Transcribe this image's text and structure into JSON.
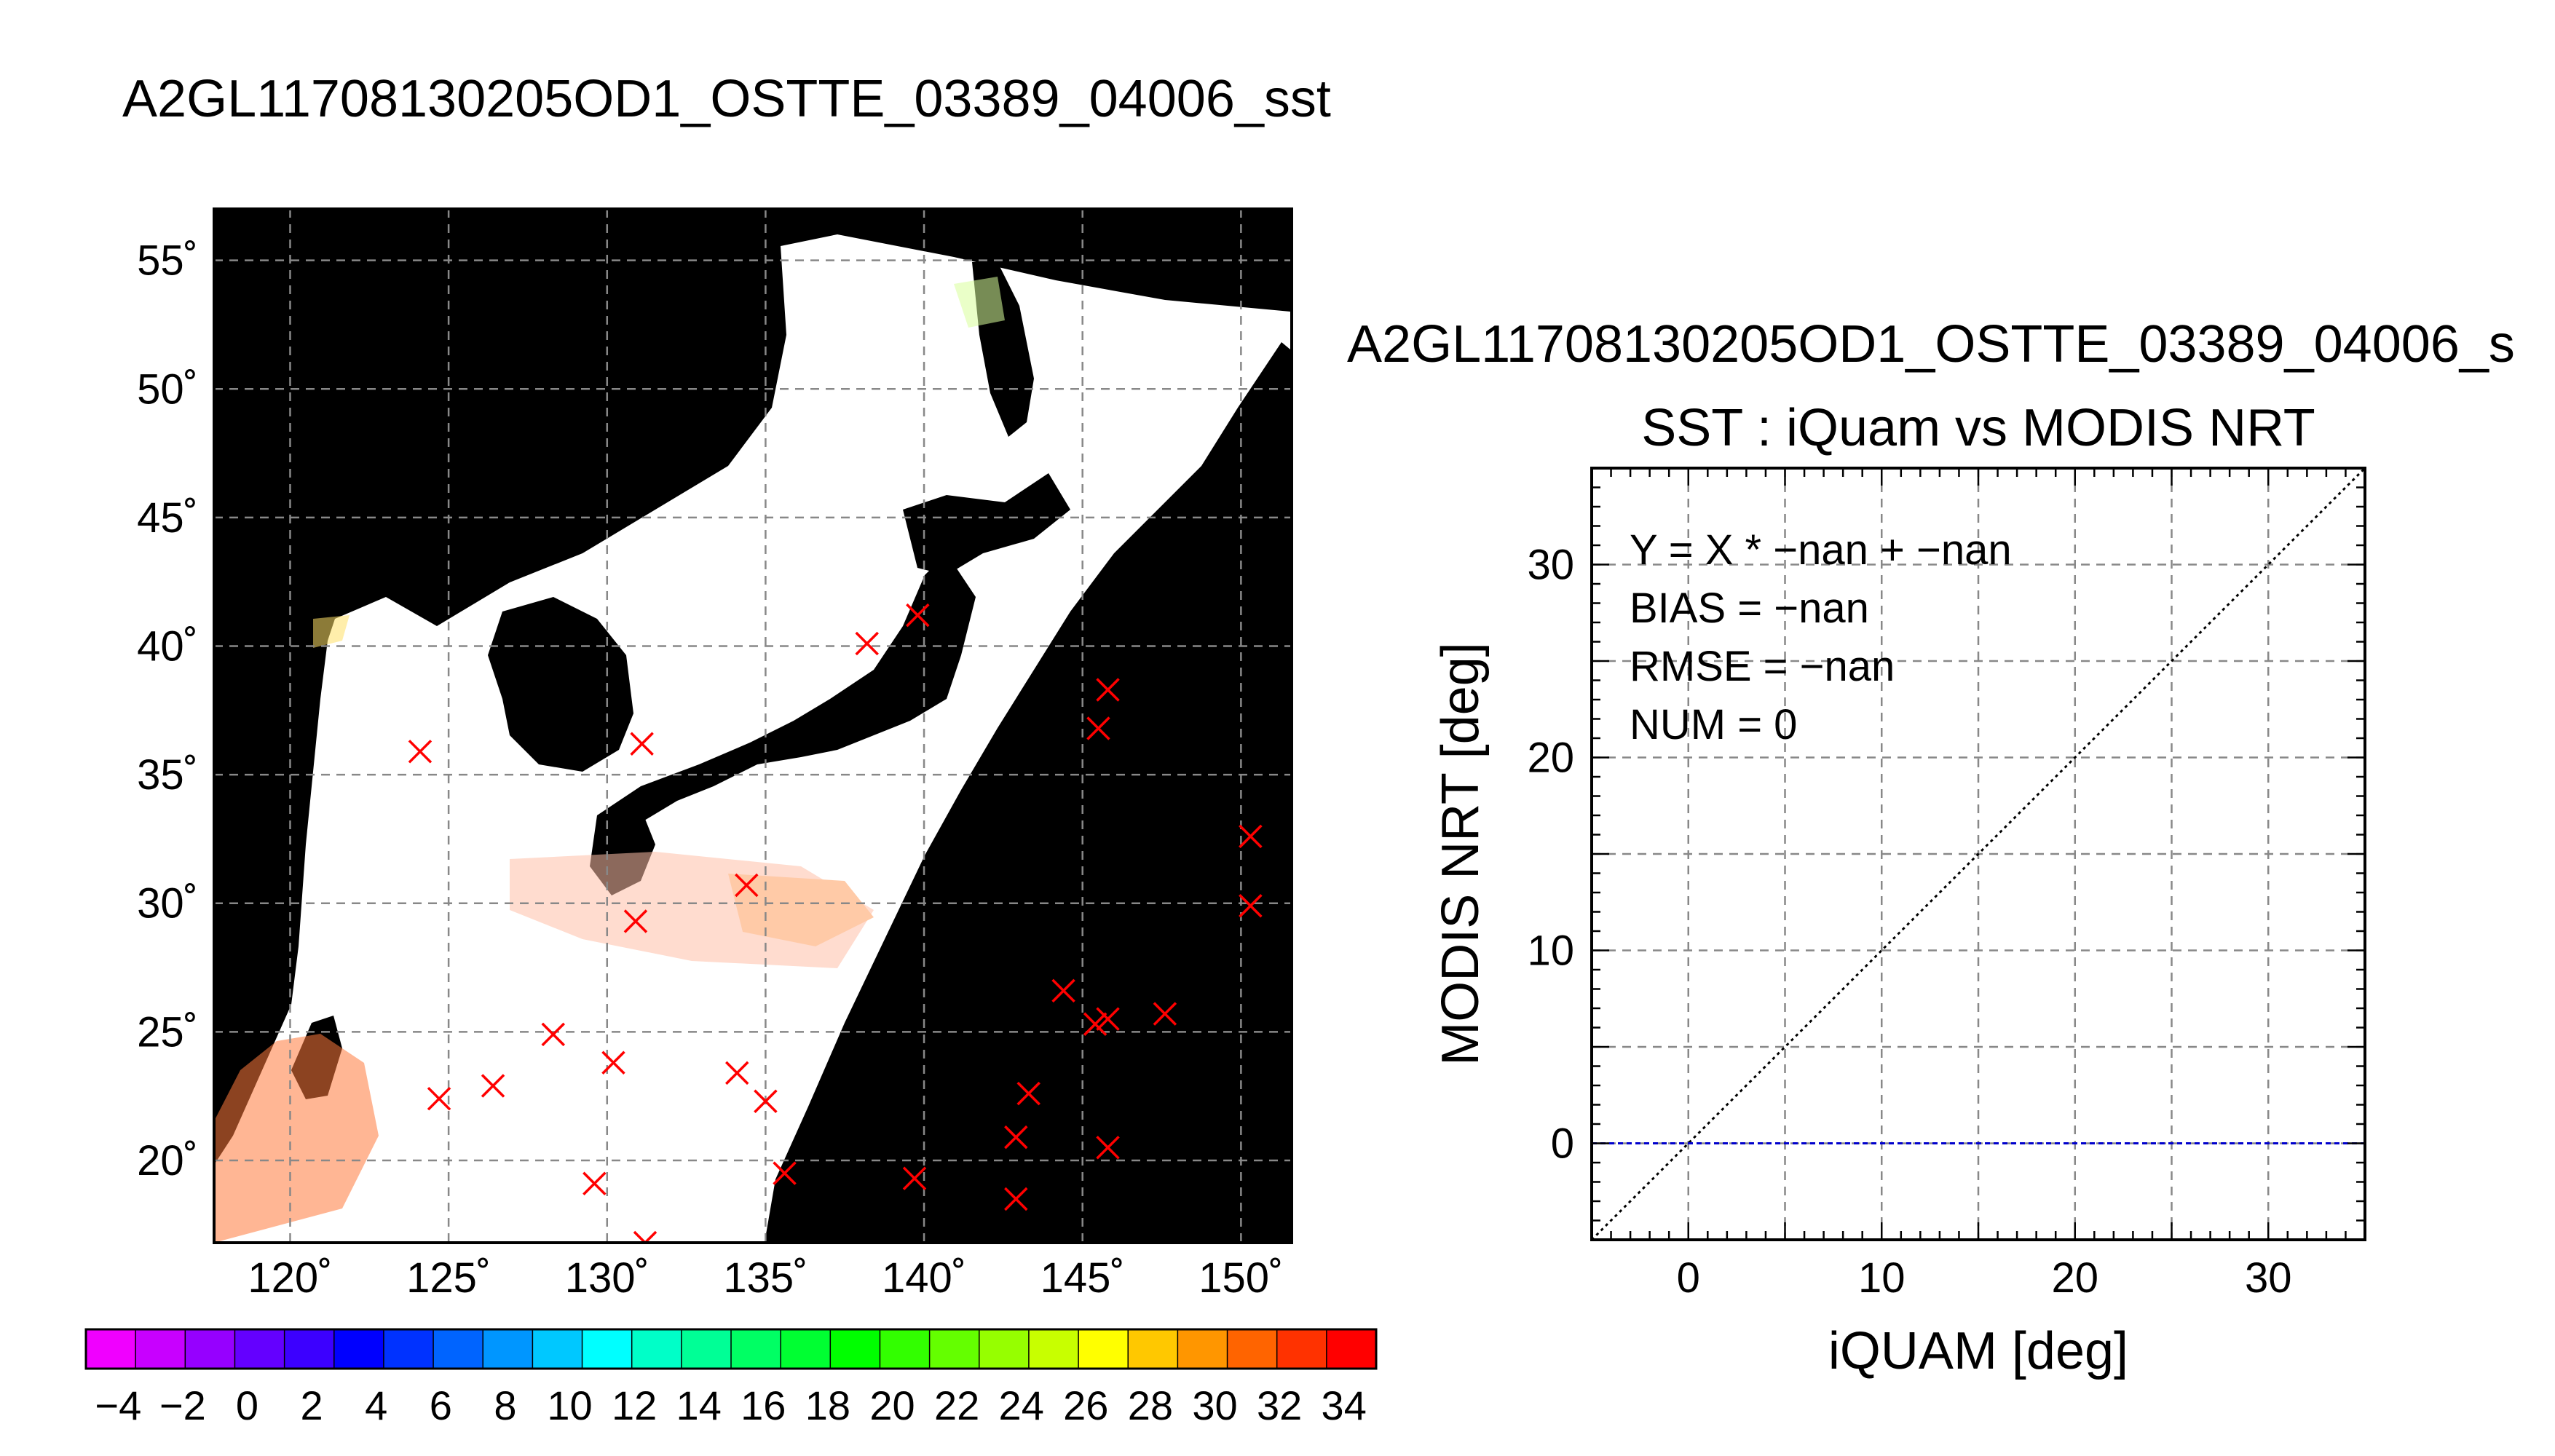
{
  "main_title": "A2GL11708130205OD1_OSTTE_03389_04006_sst",
  "chart_data": [
    {
      "type": "map",
      "title": "A2GL11708130205OD1_OSTTE_03389_04006_sst",
      "lon_range": [
        117.6,
        151.6
      ],
      "lat_range": [
        16.8,
        57.0
      ],
      "lon_ticks": [
        120,
        125,
        130,
        135,
        140,
        145,
        150
      ],
      "lat_ticks": [
        20,
        25,
        30,
        35,
        40,
        45,
        50,
        55
      ],
      "lon_tick_labels": [
        "120˚",
        "125˚",
        "130˚",
        "135˚",
        "140˚",
        "145˚",
        "150˚"
      ],
      "lat_tick_labels": [
        "20˚",
        "25˚",
        "30˚",
        "35˚",
        "40˚",
        "45˚",
        "50˚",
        "55˚"
      ],
      "grid": true,
      "land_color": "#000000",
      "background_color": "#ffffff",
      "iquam_points": [
        {
          "lon": 124.1,
          "lat": 35.9
        },
        {
          "lon": 131.1,
          "lat": 36.2
        },
        {
          "lon": 138.2,
          "lat": 40.1
        },
        {
          "lon": 139.8,
          "lat": 41.2
        },
        {
          "lon": 145.8,
          "lat": 38.3
        },
        {
          "lon": 145.5,
          "lat": 36.8
        },
        {
          "lon": 150.3,
          "lat": 32.6
        },
        {
          "lon": 150.3,
          "lat": 29.9
        },
        {
          "lon": 134.4,
          "lat": 30.7
        },
        {
          "lon": 130.9,
          "lat": 29.3
        },
        {
          "lon": 128.3,
          "lat": 24.9
        },
        {
          "lon": 130.2,
          "lat": 23.8
        },
        {
          "lon": 124.7,
          "lat": 22.4
        },
        {
          "lon": 126.4,
          "lat": 22.9
        },
        {
          "lon": 134.1,
          "lat": 23.4
        },
        {
          "lon": 135.0,
          "lat": 22.3
        },
        {
          "lon": 129.6,
          "lat": 19.1
        },
        {
          "lon": 135.6,
          "lat": 19.5
        },
        {
          "lon": 131.2,
          "lat": 16.8
        },
        {
          "lon": 139.7,
          "lat": 19.3
        },
        {
          "lon": 144.4,
          "lat": 26.6
        },
        {
          "lon": 145.4,
          "lat": 25.3
        },
        {
          "lon": 145.8,
          "lat": 25.5
        },
        {
          "lon": 147.6,
          "lat": 25.7
        },
        {
          "lon": 143.3,
          "lat": 22.6
        },
        {
          "lon": 142.9,
          "lat": 20.9
        },
        {
          "lon": 145.8,
          "lat": 20.5
        },
        {
          "lon": 142.9,
          "lat": 18.5
        }
      ],
      "marker_color": "#ff0000"
    },
    {
      "type": "colorbar",
      "range": [
        -5,
        35
      ],
      "tick_values": [
        -4,
        -2,
        0,
        2,
        4,
        6,
        8,
        10,
        12,
        14,
        16,
        18,
        20,
        22,
        24,
        26,
        28,
        30,
        32,
        34
      ],
      "tick_labels": [
        "−4",
        "−2",
        "0",
        "2",
        "4",
        "6",
        "8",
        "10",
        "12",
        "14",
        "16",
        "18",
        "20",
        "22",
        "24",
        "26",
        "28",
        "30",
        "32",
        "34"
      ],
      "colors": [
        "#f000ff",
        "#c800ff",
        "#9600ff",
        "#6400ff",
        "#3c00ff",
        "#0000ff",
        "#0032ff",
        "#0064ff",
        "#0096ff",
        "#00c8ff",
        "#00ffff",
        "#00ffc8",
        "#00ff96",
        "#00ff64",
        "#00ff32",
        "#00ff00",
        "#32ff00",
        "#64ff00",
        "#96ff00",
        "#c8ff00",
        "#ffff00",
        "#ffc800",
        "#ff9600",
        "#ff6400",
        "#ff3200",
        "#ff0000"
      ]
    },
    {
      "type": "scatter",
      "header": "A2GL11708130205OD1_OSTTE_03389_04006_s",
      "title": "SST : iQuam vs MODIS NRT",
      "xlabel": "iQUAM [deg]",
      "ylabel": "MODIS NRT [deg]",
      "xlim": [
        -5,
        35
      ],
      "ylim": [
        -5,
        35
      ],
      "xticks": [
        0,
        10,
        20,
        30
      ],
      "yticks": [
        0,
        10,
        20,
        30
      ],
      "minor_grid_step": 5,
      "grid": true,
      "points": [],
      "reference_lines": [
        {
          "name": "1:1",
          "x": [
            -5,
            35
          ],
          "y": [
            -5,
            35
          ],
          "color": "#000000",
          "style": "dotted"
        },
        {
          "name": "zero",
          "x": [
            -5,
            35
          ],
          "y": [
            0,
            0
          ],
          "color": "#0000cc",
          "style": "dashed"
        }
      ],
      "stats": [
        "Y = X * −nan + −nan",
        "BIAS = −nan",
        "RMSE = −nan",
        "NUM = 0"
      ]
    }
  ]
}
